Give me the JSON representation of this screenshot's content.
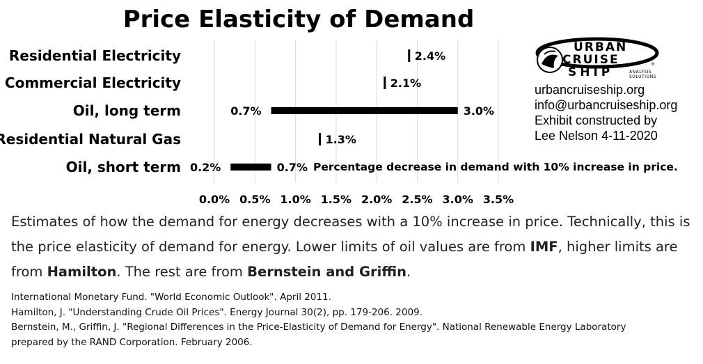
{
  "chart_data": {
    "type": "bar",
    "title": "Price Elasticity of Demand",
    "categories": [
      "Residential Electricity",
      "Commercial Electricity",
      "Oil, long term",
      "Residential Natural Gas",
      "Oil, short term"
    ],
    "ranges": [
      {
        "category": "Residential Electricity",
        "low": 2.4,
        "high": 2.4,
        "low_label": "",
        "high_label": "2.4%"
      },
      {
        "category": "Commercial Electricity",
        "low": 2.1,
        "high": 2.1,
        "low_label": "",
        "high_label": "2.1%"
      },
      {
        "category": "Oil, long term",
        "low": 0.7,
        "high": 3.0,
        "low_label": "0.7%",
        "high_label": "3.0%"
      },
      {
        "category": "Residential Natural Gas",
        "low": 1.3,
        "high": 1.3,
        "low_label": "",
        "high_label": "1.3%"
      },
      {
        "category": "Oil, short term",
        "low": 0.2,
        "high": 0.7,
        "low_label": "0.2%",
        "high_label": "0.7%"
      }
    ],
    "x_ticks": [
      0,
      0.5,
      1.0,
      1.5,
      2.0,
      2.5,
      3.0,
      3.5
    ],
    "x_tick_labels": [
      "0.0%",
      "0.5%",
      "1.0%",
      "1.5%",
      "2.0%",
      "2.5%",
      "3.0%",
      "3.5%"
    ],
    "xlim": [
      0,
      3.5
    ],
    "grid": "vertical",
    "annotation": "Percentage decrease in demand with 10% increase in price.",
    "xlabel": "",
    "ylabel": ""
  },
  "brand": {
    "logo_words": [
      "URBAN",
      "CRUISE",
      "SHIP"
    ],
    "logo_sub": [
      "ANALYSIS",
      "SOLUTIONS"
    ],
    "lines": [
      "urbancruiseship.org",
      "info@urbancruiseship.org",
      "Exhibit constructed by",
      "Lee Nelson 4-11-2020"
    ]
  },
  "description": {
    "part1": "Estimates of how the demand for energy decreases with a 10% increase in price. Technically, this is the price elasticity of demand for energy. Lower limits of oil values are from ",
    "imf": "IMF",
    "part2": ", higher limits are from ",
    "hamilton": "Hamilton",
    "part3": ". The rest are from ",
    "bernstein": "Bernstein and Griffin",
    "part4": "."
  },
  "references": [
    "International Monetary Fund. \"World Economic Outlook\". April 2011.",
    "Hamilton, J. \"Understanding Crude Oil Prices\". Energy Journal 30(2), pp. 179-206. 2009.",
    "Bernstein, M., Griffin, J. \"Regional Differences in the Price-Elasticity of Demand for Energy\". National Renewable Energy Laboratory",
    "prepared by the RAND Corporation. February 2006."
  ]
}
